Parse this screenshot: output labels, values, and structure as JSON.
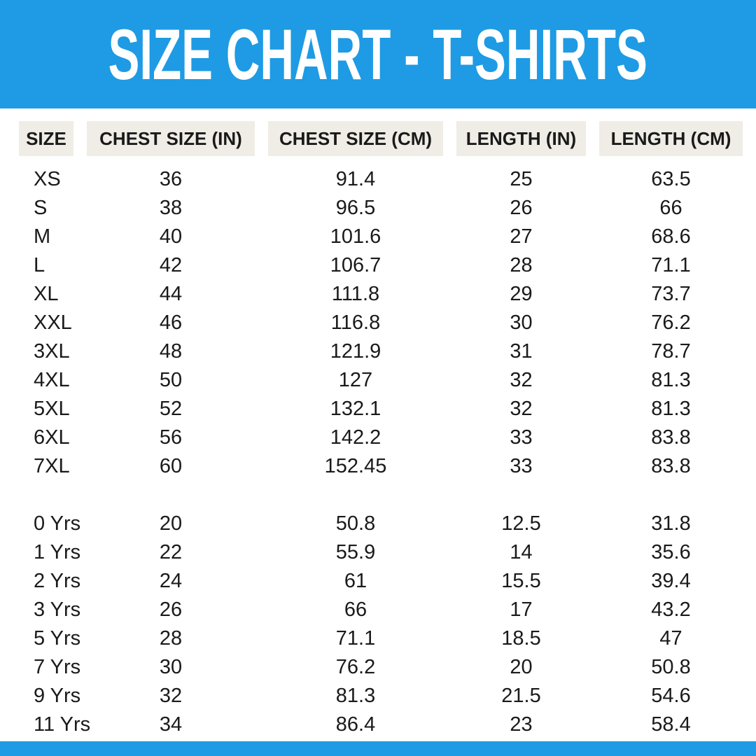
{
  "header": {
    "title": "SIZE CHART - T-SHIRTS"
  },
  "colors": {
    "accent": "#1E9BE4",
    "header_cell_bg": "#F0EDE6",
    "text": "#1A1A1A",
    "title_text": "#FFFFFF"
  },
  "chart_data": {
    "type": "table",
    "title": "SIZE CHART - T-SHIRTS",
    "columns": [
      "SIZE",
      "CHEST SIZE (IN)",
      "CHEST SIZE (CM)",
      "LENGTH (IN)",
      "LENGTH (CM)"
    ],
    "groups": [
      {
        "name": "adult-sizes",
        "rows": [
          [
            "XS",
            "36",
            "91.4",
            "25",
            "63.5"
          ],
          [
            "S",
            "38",
            "96.5",
            "26",
            "66"
          ],
          [
            "M",
            "40",
            "101.6",
            "27",
            "68.6"
          ],
          [
            "L",
            "42",
            "106.7",
            "28",
            "71.1"
          ],
          [
            "XL",
            "44",
            "111.8",
            "29",
            "73.7"
          ],
          [
            "XXL",
            "46",
            "116.8",
            "30",
            "76.2"
          ],
          [
            "3XL",
            "48",
            "121.9",
            "31",
            "78.7"
          ],
          [
            "4XL",
            "50",
            "127",
            "32",
            "81.3"
          ],
          [
            "5XL",
            "52",
            "132.1",
            "32",
            "81.3"
          ],
          [
            "6XL",
            "56",
            "142.2",
            "33",
            "83.8"
          ],
          [
            "7XL",
            "60",
            "152.45",
            "33",
            "83.8"
          ]
        ]
      },
      {
        "name": "kids-sizes",
        "rows": [
          [
            "0 Yrs",
            "20",
            "50.8",
            "12.5",
            "31.8"
          ],
          [
            "1 Yrs",
            "22",
            "55.9",
            "14",
            "35.6"
          ],
          [
            "2 Yrs",
            "24",
            "61",
            "15.5",
            "39.4"
          ],
          [
            "3 Yrs",
            "26",
            "66",
            "17",
            "43.2"
          ],
          [
            "5 Yrs",
            "28",
            "71.1",
            "18.5",
            "47"
          ],
          [
            "7 Yrs",
            "30",
            "76.2",
            "20",
            "50.8"
          ],
          [
            "9 Yrs",
            "32",
            "81.3",
            "21.5",
            "54.6"
          ],
          [
            "11 Yrs",
            "34",
            "86.4",
            "23",
            "58.4"
          ]
        ]
      }
    ]
  }
}
